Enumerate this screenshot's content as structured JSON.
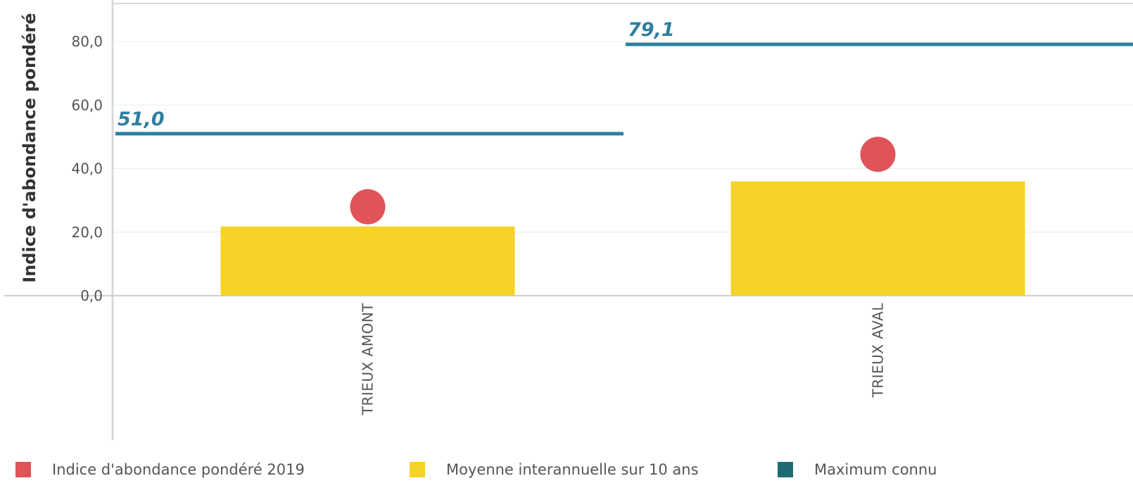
{
  "chart_data": {
    "type": "bar",
    "categories": [
      "TRIEUX AMONT",
      "TRIEUX AVAL"
    ],
    "ylabel": "Indice d'abondance pondéré",
    "xlabel": "",
    "ylim": [
      0,
      80
    ],
    "yticks": [
      "0,0",
      "20,0",
      "40,0",
      "60,0",
      "80,0"
    ],
    "ytick_values": [
      0,
      20,
      40,
      60,
      80
    ],
    "grid": true,
    "legend_position": "bottom",
    "series": [
      {
        "name": "Indice d'abondance pondéré 2019",
        "kind": "point",
        "color": "#e05358",
        "values": [
          28,
          44.5
        ]
      },
      {
        "name": "Moyenne interannuelle sur 10 ans",
        "kind": "bar",
        "color": "#f5d327",
        "values": [
          21.8,
          36
        ]
      },
      {
        "name": "Maximum connu",
        "kind": "line",
        "color": "#2e7fa0",
        "legend_color": "#1f6b73",
        "values": [
          51.0,
          79.1
        ],
        "labels": [
          "51,0",
          "79,1"
        ]
      }
    ]
  },
  "legend": [
    {
      "label": "Indice d'abondance pondéré 2019",
      "color": "#e05358",
      "icon": "red-square"
    },
    {
      "label": "Moyenne interannuelle sur 10 ans",
      "color": "#f5d327",
      "icon": "yellow-square"
    },
    {
      "label": "Maximum connu",
      "color": "#1f6b73",
      "icon": "teal-square"
    }
  ]
}
